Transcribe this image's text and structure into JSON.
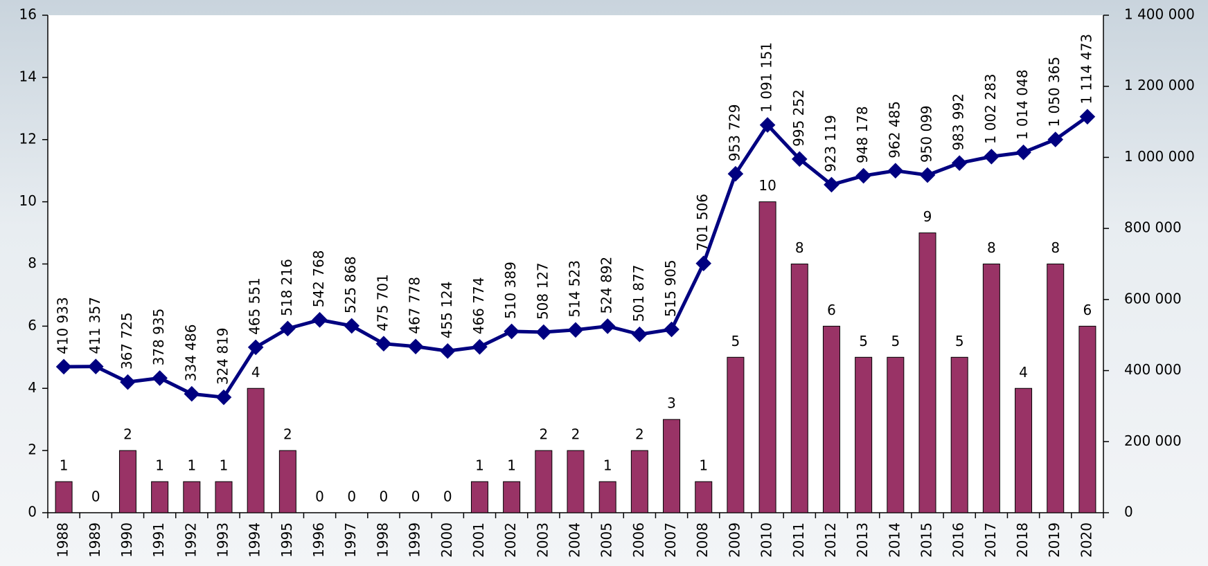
{
  "chart_data": {
    "type": "bar",
    "categories": [
      "1988",
      "1989",
      "1990",
      "1991",
      "1992",
      "1993",
      "1994",
      "1995",
      "1996",
      "1997",
      "1998",
      "1999",
      "2000",
      "2001",
      "2002",
      "2003",
      "2004",
      "2005",
      "2006",
      "2007",
      "2008",
      "2009",
      "2010",
      "2011",
      "2012",
      "2013",
      "2014",
      "2015",
      "2016",
      "2017",
      "2018",
      "2019",
      "2020"
    ],
    "series": [
      {
        "type": "bar",
        "color": "#993366",
        "values": [
          1,
          0,
          2,
          1,
          1,
          1,
          4,
          2,
          0,
          0,
          0,
          0,
          0,
          1,
          1,
          2,
          2,
          1,
          2,
          3,
          1,
          5,
          10,
          8,
          6,
          5,
          5,
          9,
          5,
          8,
          4,
          8,
          6
        ]
      },
      {
        "type": "line",
        "axis": "y2",
        "color": "#000080",
        "values": [
          410933,
          411357,
          367725,
          378935,
          334486,
          324819,
          465551,
          518216,
          542768,
          525868,
          475701,
          467778,
          455124,
          466774,
          510389,
          508127,
          514523,
          524892,
          501877,
          515905,
          701506,
          953729,
          1091151,
          995252,
          923119,
          948178,
          962485,
          950099,
          983992,
          1002283,
          1014048,
          1050365,
          1114473
        ],
        "value_labels": [
          "410 933",
          "411 357",
          "367 725",
          "378 935",
          "334 486",
          "324 819",
          "465 551",
          "518 216",
          "542 768",
          "525 868",
          "475 701",
          "467 778",
          "455 124",
          "466 774",
          "510 389",
          "508 127",
          "514 523",
          "524 892",
          "501 877",
          "515 905",
          "701 506",
          "953 729",
          "1 091 151",
          "995 252",
          "923 119",
          "948 178",
          "962 485",
          "950 099",
          "983 992",
          "1 002 283",
          "1 014 048",
          "1 050 365",
          "1 114 473"
        ]
      }
    ],
    "ylim": [
      0,
      16
    ],
    "yticks": [
      0,
      2,
      4,
      6,
      8,
      10,
      12,
      14,
      16
    ],
    "y2lim": [
      0,
      1400000
    ],
    "y2ticks": [
      0,
      {
        "value": 200000,
        "label": "200 000"
      },
      {
        "value": 400000,
        "label": "400 000"
      },
      {
        "value": 600000,
        "label": "600 000"
      },
      {
        "value": 800000,
        "label": "800 000"
      },
      {
        "value": 1000000,
        "label": "1 000 000"
      },
      {
        "value": 1200000,
        "label": "1 200 000"
      },
      {
        "value": 1400000,
        "label": "1 400 000"
      }
    ]
  }
}
